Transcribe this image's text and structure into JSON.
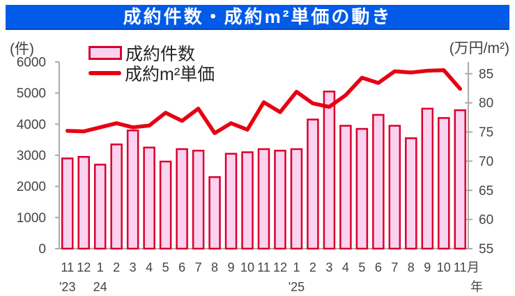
{
  "title_bar": {
    "text": "成約件数・成約m²単価の動き",
    "bg_color": "#025BE8",
    "text_color": "#FFFFFF"
  },
  "chart_data": {
    "type": "combo-bar-line",
    "title": "成約件数・成約m²単価の動き",
    "categories_months": [
      "11",
      "12",
      "1",
      "2",
      "3",
      "4",
      "5",
      "6",
      "7",
      "8",
      "9",
      "10",
      "11",
      "12",
      "1",
      "2",
      "3",
      "4",
      "5",
      "6",
      "7",
      "8",
      "9",
      "10",
      "11"
    ],
    "series": [
      {
        "name": "成約件数",
        "type": "bar",
        "axis": "left",
        "fill": "#FBD2EF",
        "stroke": "#D8002D",
        "values": [
          2900,
          2950,
          2700,
          3350,
          3800,
          3250,
          2800,
          3200,
          3150,
          2300,
          3050,
          3100,
          3200,
          3150,
          3200,
          4150,
          5050,
          3950,
          3850,
          4300,
          3950,
          3550,
          4500,
          4200,
          4450
        ]
      },
      {
        "name": "成約m²単価",
        "type": "line",
        "axis": "right",
        "color": "#E60012",
        "values": [
          75.2,
          75.1,
          75.8,
          76.5,
          75.8,
          76.1,
          78.3,
          76.9,
          79.0,
          74.8,
          76.5,
          75.4,
          80.1,
          78.4,
          81.9,
          79.9,
          79.3,
          81.3,
          84.3,
          83.4,
          85.4,
          85.2,
          85.5,
          85.6,
          82.4
        ]
      }
    ],
    "left_axis": {
      "unit": "(件)",
      "min": 0,
      "max": 6000,
      "ticks": [
        0,
        1000,
        2000,
        3000,
        4000,
        5000,
        6000
      ]
    },
    "right_axis": {
      "unit": "(万円/m²)",
      "min": 55,
      "max": 87,
      "ticks": [
        55,
        60,
        65,
        70,
        75,
        80,
        85
      ]
    },
    "x_axis": {
      "month_suffix": "月",
      "year_suffix": "年",
      "year_marks": [
        {
          "index": 0,
          "text": "'23"
        },
        {
          "index": 2,
          "text": "24"
        },
        {
          "index": 14,
          "text": "'25"
        }
      ]
    },
    "grid": false,
    "legend_position": "top-left-inside"
  },
  "style": {
    "axis_line_color": "#ABABAB",
    "tick_text_color": "#444444"
  }
}
